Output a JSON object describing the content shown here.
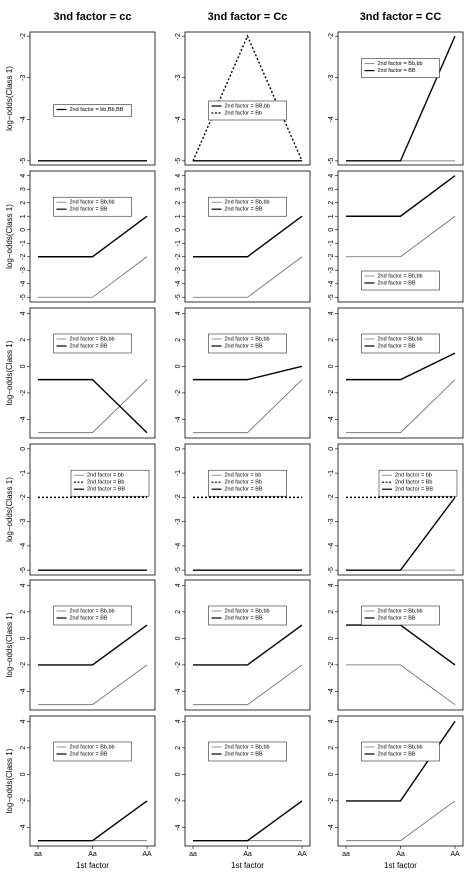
{
  "chart_data": [
    {
      "type": "line",
      "title": "3nd factor = cc",
      "y_label": "log−odds(Class 1)",
      "ylim": [
        -5.1,
        -1.9
      ],
      "yticks": [
        -5,
        -4,
        -3,
        -2
      ],
      "legend": "center",
      "series": [
        {
          "name": "2nd factor = bb,Bb,BB",
          "color": "#000000",
          "values": [
            -5,
            -5,
            -5
          ]
        }
      ]
    },
    {
      "type": "line",
      "title": "3nd factor = Cc",
      "ylim": [
        -5.1,
        -1.9
      ],
      "yticks": [
        -5,
        -4,
        -3,
        -2
      ],
      "legend": "center",
      "series": [
        {
          "name": "2nd factor = BB,bb",
          "color": "#000000",
          "values": [
            -5,
            -5,
            -5
          ]
        },
        {
          "name": "2nd factor = Bb",
          "color": "#000000",
          "linestyle": "dashed",
          "values": [
            -5,
            -2,
            -5
          ]
        }
      ]
    },
    {
      "type": "line",
      "title": "3nd factor = CC",
      "ylim": [
        -5.1,
        -1.9
      ],
      "yticks": [
        -5,
        -4,
        -3,
        -2
      ],
      "legend": "top",
      "series": [
        {
          "name": "2nd factor = Bb,bb",
          "color": "#666666",
          "values": [
            -5,
            -5,
            -5
          ]
        },
        {
          "name": "2nd factor = BB",
          "color": "#000000",
          "values": [
            -5,
            -5,
            -2
          ]
        }
      ]
    },
    {
      "type": "line",
      "y_label": "log−odds(Class 1)",
      "ylim": [
        -5.35,
        4.35
      ],
      "yticks": [
        -5,
        -4,
        -3,
        -2,
        -1,
        0,
        1,
        2,
        3,
        4
      ],
      "legend": "top",
      "series": [
        {
          "name": "2nd factor = Bb,bb",
          "color": "#666666",
          "values": [
            -5,
            -5,
            -2
          ]
        },
        {
          "name": "2nd factor = BB",
          "color": "#000000",
          "values": [
            -2,
            -2,
            1
          ]
        }
      ]
    },
    {
      "type": "line",
      "ylim": [
        -5.35,
        4.35
      ],
      "yticks": [
        -5,
        -4,
        -3,
        -2,
        -1,
        0,
        1,
        2,
        3,
        4
      ],
      "legend": "top",
      "series": [
        {
          "name": "2nd factor = Bb,bb",
          "color": "#666666",
          "values": [
            -5,
            -5,
            -2
          ]
        },
        {
          "name": "2nd factor = BB",
          "color": "#000000",
          "values": [
            -2,
            -2,
            1
          ]
        }
      ]
    },
    {
      "type": "line",
      "ylim": [
        -5.35,
        4.35
      ],
      "yticks": [
        -5,
        -4,
        -3,
        -2,
        -1,
        0,
        1,
        2,
        3,
        4
      ],
      "legend": "bottom",
      "series": [
        {
          "name": "2nd factor = Bb,bb",
          "color": "#666666",
          "values": [
            -2,
            -2,
            1
          ]
        },
        {
          "name": "2nd factor = BB",
          "color": "#000000",
          "values": [
            1,
            1,
            4
          ]
        }
      ]
    },
    {
      "type": "line",
      "y_label": "log−odds(Class 1)",
      "ylim": [
        -5.4,
        4.4
      ],
      "yticks": [
        -4,
        -2,
        0,
        2,
        4
      ],
      "legend": "top",
      "series": [
        {
          "name": "2nd factor = Bb,bb",
          "color": "#666666",
          "values": [
            -5,
            -5,
            -1
          ]
        },
        {
          "name": "2nd factor = BB",
          "color": "#000000",
          "values": [
            -1,
            -1,
            -5
          ]
        }
      ]
    },
    {
      "type": "line",
      "ylim": [
        -5.4,
        4.4
      ],
      "yticks": [
        -4,
        -2,
        0,
        2,
        4
      ],
      "legend": "top",
      "series": [
        {
          "name": "2nd factor = Bb,bb",
          "color": "#666666",
          "values": [
            -5,
            -5,
            -1
          ]
        },
        {
          "name": "2nd factor = BB",
          "color": "#000000",
          "values": [
            -1,
            -1,
            0
          ]
        }
      ]
    },
    {
      "type": "line",
      "ylim": [
        -5.4,
        4.4
      ],
      "yticks": [
        -4,
        -2,
        0,
        2,
        4
      ],
      "legend": "top",
      "series": [
        {
          "name": "2nd factor = Bb,bb",
          "color": "#666666",
          "values": [
            -5,
            -5,
            -1
          ]
        },
        {
          "name": "2nd factor = BB",
          "color": "#000000",
          "values": [
            -1,
            -1,
            1
          ]
        }
      ]
    },
    {
      "type": "line",
      "y_label": "log−odds(Class 1)",
      "ylim": [
        -5.2,
        0.2
      ],
      "yticks": [
        -5,
        -4,
        -3,
        -2,
        -1,
        0
      ],
      "legend": "top-right",
      "series": [
        {
          "name": "2nd factor = bb",
          "color": "#666666",
          "values": [
            -5,
            -5,
            -5
          ]
        },
        {
          "name": "2nd factor = Bb",
          "color": "#000000",
          "linestyle": "dashed",
          "values": [
            -2,
            -2,
            -2
          ]
        },
        {
          "name": "2nd factor = BB",
          "color": "#000000",
          "values": [
            -5,
            -5,
            -5
          ]
        }
      ]
    },
    {
      "type": "line",
      "ylim": [
        -5.2,
        0.2
      ],
      "yticks": [
        -5,
        -4,
        -3,
        -2,
        -1,
        0
      ],
      "legend": "top",
      "series": [
        {
          "name": "2nd factor = bb",
          "color": "#666666",
          "values": [
            -5,
            -5,
            -5
          ]
        },
        {
          "name": "2nd factor = Bb",
          "color": "#000000",
          "linestyle": "dashed",
          "values": [
            -2,
            -2,
            -2
          ]
        },
        {
          "name": "2nd factor = BB",
          "color": "#000000",
          "values": [
            -5,
            -5,
            -5
          ]
        }
      ]
    },
    {
      "type": "line",
      "ylim": [
        -5.2,
        0.2
      ],
      "yticks": [
        -5,
        -4,
        -3,
        -2,
        -1,
        0
      ],
      "legend": "top-right",
      "series": [
        {
          "name": "2nd factor = bb",
          "color": "#666666",
          "values": [
            -5,
            -5,
            -5
          ]
        },
        {
          "name": "2nd factor = Bb",
          "color": "#000000",
          "linestyle": "dashed",
          "values": [
            -2,
            -2,
            -2
          ]
        },
        {
          "name": "2nd factor = BB",
          "color": "#000000",
          "values": [
            -5,
            -5,
            -2
          ]
        }
      ]
    },
    {
      "type": "line",
      "y_label": "log−odds(Class 1)",
      "ylim": [
        -5.4,
        4.4
      ],
      "yticks": [
        -4,
        -2,
        0,
        2,
        4
      ],
      "legend": "top",
      "series": [
        {
          "name": "2nd factor = Bb,bb",
          "color": "#666666",
          "values": [
            -5,
            -5,
            -2
          ]
        },
        {
          "name": "2nd factor = BB",
          "color": "#000000",
          "values": [
            -2,
            -2,
            1
          ]
        }
      ]
    },
    {
      "type": "line",
      "ylim": [
        -5.4,
        4.4
      ],
      "yticks": [
        -4,
        -2,
        0,
        2,
        4
      ],
      "legend": "top",
      "series": [
        {
          "name": "2nd factor = Bb,bb",
          "color": "#666666",
          "values": [
            -5,
            -5,
            -2
          ]
        },
        {
          "name": "2nd factor = BB",
          "color": "#000000",
          "values": [
            -2,
            -2,
            1
          ]
        }
      ]
    },
    {
      "type": "line",
      "ylim": [
        -5.4,
        4.4
      ],
      "yticks": [
        -4,
        -2,
        0,
        2,
        4
      ],
      "legend": "top",
      "series": [
        {
          "name": "2nd factor = Bb,bb",
          "color": "#666666",
          "values": [
            -2,
            -2,
            -5
          ]
        },
        {
          "name": "2nd factor = BB",
          "color": "#000000",
          "values": [
            1,
            1,
            -2
          ]
        }
      ]
    },
    {
      "type": "line",
      "y_label": "log−odds(Class 1)",
      "x_label": "1st factor",
      "categories": [
        "aa",
        "Aa",
        "AA"
      ],
      "ylim": [
        -5.4,
        4.4
      ],
      "yticks": [
        -4,
        -2,
        0,
        2,
        4
      ],
      "legend": "top",
      "series": [
        {
          "name": "2nd factor = Bb,bb",
          "color": "#666666",
          "values": [
            -5,
            -5,
            -5
          ]
        },
        {
          "name": "2nd factor = BB",
          "color": "#000000",
          "values": [
            -5,
            -5,
            -2
          ]
        }
      ]
    },
    {
      "type": "line",
      "x_label": "1st factor",
      "categories": [
        "aa",
        "Aa",
        "AA"
      ],
      "ylim": [
        -5.4,
        4.4
      ],
      "yticks": [
        -4,
        -2,
        0,
        2,
        4
      ],
      "legend": "top",
      "series": [
        {
          "name": "2nd factor = Bb,bb",
          "color": "#666666",
          "values": [
            -5,
            -5,
            -5
          ]
        },
        {
          "name": "2nd factor = BB",
          "color": "#000000",
          "values": [
            -5,
            -5,
            -2
          ]
        }
      ]
    },
    {
      "type": "line",
      "x_label": "1st factor",
      "categories": [
        "aa",
        "Aa",
        "AA"
      ],
      "ylim": [
        -5.4,
        4.4
      ],
      "yticks": [
        -4,
        -2,
        0,
        2,
        4
      ],
      "legend": "top",
      "series": [
        {
          "name": "2nd factor = Bb,bb",
          "color": "#666666",
          "values": [
            -5,
            -5,
            -2
          ]
        },
        {
          "name": "2nd factor = BB",
          "color": "#000000",
          "values": [
            -2,
            -2,
            4
          ]
        }
      ]
    }
  ]
}
